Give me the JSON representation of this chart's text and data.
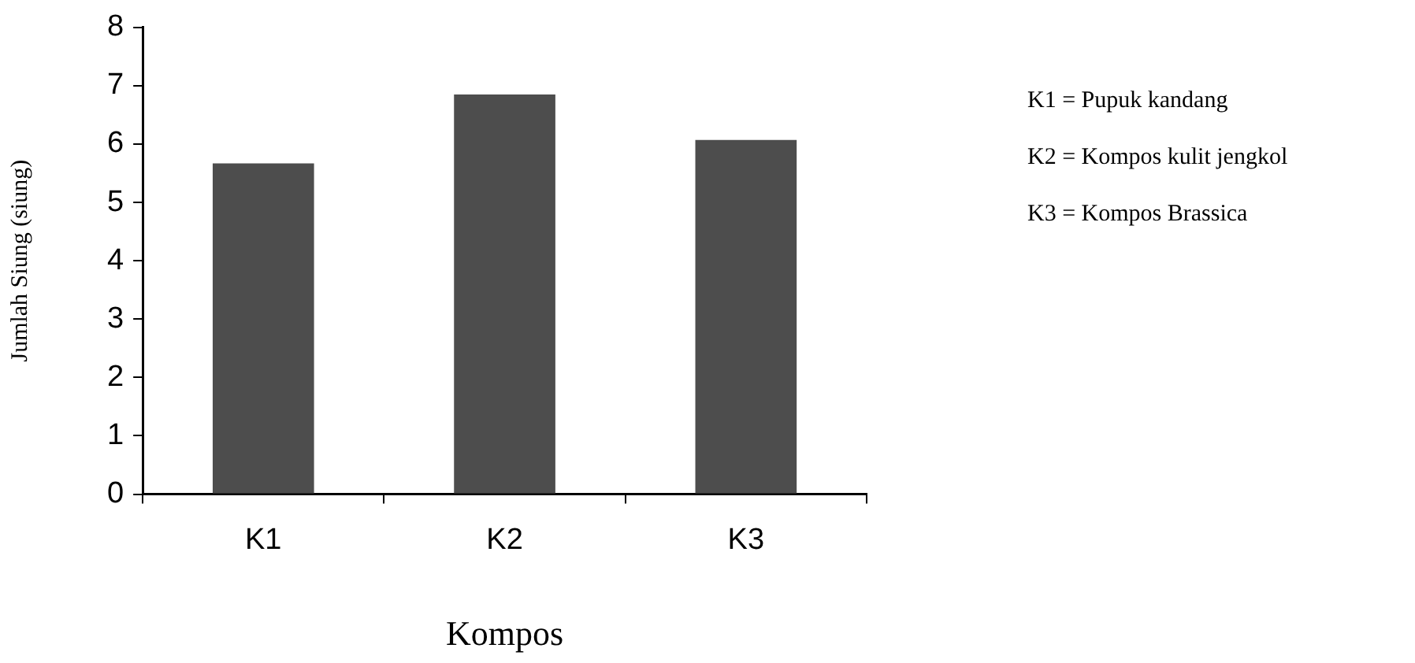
{
  "chart_data": {
    "type": "bar",
    "xlabel": "Kompos",
    "ylabel": "Jumlah Siung (siung)",
    "categories": [
      "K1",
      "K2",
      "K3"
    ],
    "values": [
      5.67,
      6.85,
      6.07
    ],
    "color": "#4d4d4d",
    "ylim": [
      0,
      8
    ],
    "yticks": [
      0,
      1,
      2,
      3,
      4,
      5,
      6,
      7,
      8
    ],
    "grid": false,
    "annotations": [
      "K1 = Pupuk kandang",
      "K2 = Kompos kulit jengkol",
      "K3 = Kompos Brassica"
    ]
  }
}
